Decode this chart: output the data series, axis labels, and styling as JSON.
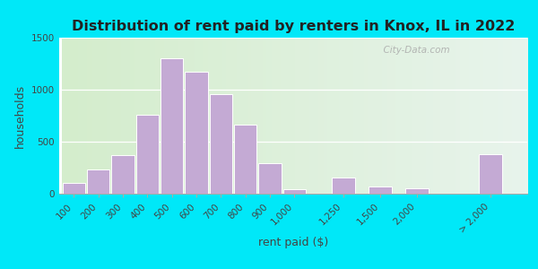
{
  "title": "Distribution of rent paid by renters in Knox, IL in 2022",
  "xlabel": "rent paid ($)",
  "ylabel": "households",
  "bar_color": "#c4aad4",
  "bar_edgecolor": "#ffffff",
  "categories": [
    "100",
    "200",
    "300",
    "400",
    "500",
    "600",
    "700",
    "800",
    "900",
    "1,000",
    "1,250",
    "1,500",
    "2,000",
    "> 2,000"
  ],
  "values": [
    100,
    230,
    370,
    760,
    1300,
    1175,
    960,
    660,
    290,
    40,
    155,
    65,
    50,
    380
  ],
  "ylim": [
    0,
    1500
  ],
  "yticks": [
    0,
    500,
    1000,
    1500
  ],
  "bg_outer": "#00e8f8",
  "bg_plot": "#e8f5e2",
  "watermark": "  City-Data.com",
  "title_fontsize": 11.5,
  "axis_label_fontsize": 9,
  "tick_fontsize": 7.5
}
